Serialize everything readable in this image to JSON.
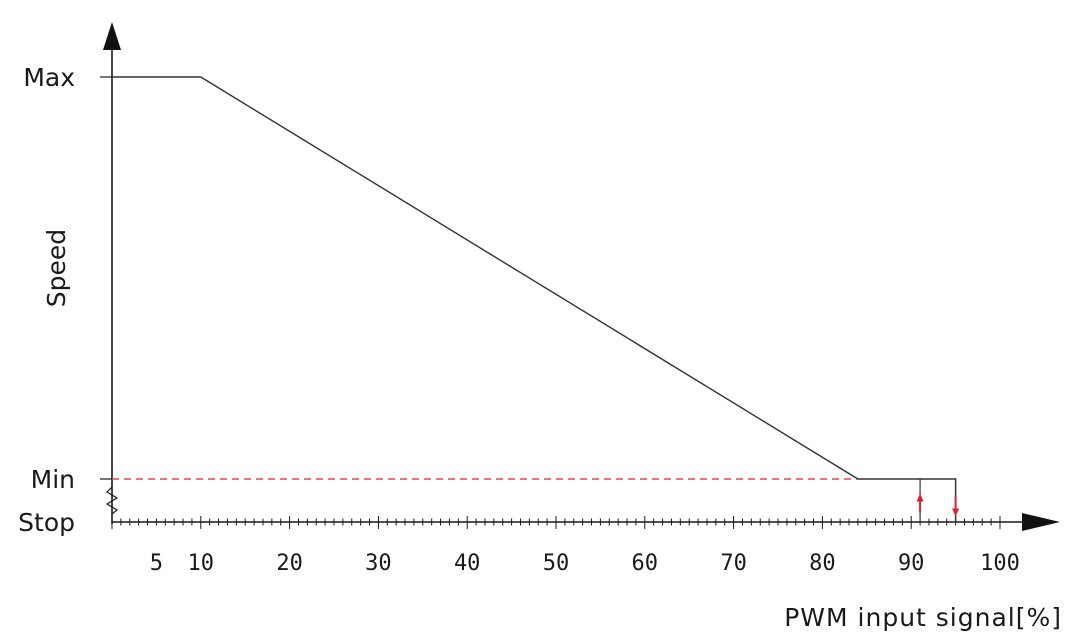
{
  "chart_data": {
    "type": "line",
    "xlabel": "PWM  input signal[%]",
    "ylabel": "Speed",
    "xlim": [
      0,
      100
    ],
    "x_ticks": [
      5,
      10,
      20,
      30,
      40,
      50,
      60,
      70,
      80,
      90,
      100
    ],
    "y_levels": [
      {
        "label": "Max",
        "level": "max"
      },
      {
        "label": "Min",
        "level": "min"
      },
      {
        "label": "Stop",
        "level": "stop"
      }
    ],
    "series": [
      {
        "points": [
          {
            "x": 0,
            "y": "max"
          },
          {
            "x": 10,
            "y": "max"
          },
          {
            "x": 84,
            "y": "min"
          },
          {
            "x": 95,
            "y": "min"
          },
          {
            "x": 95,
            "y": "stop"
          }
        ]
      }
    ],
    "min_reference_line": {
      "y": "min",
      "style": "dashed",
      "color": "#e8474f"
    },
    "hysteresis_markers": [
      {
        "x": 91,
        "direction": "up",
        "color": "#e0202a"
      },
      {
        "x": 95,
        "direction": "down",
        "color": "#e0202a"
      }
    ],
    "colors": {
      "line": "#333333",
      "axis": "#1a1a1a"
    }
  }
}
